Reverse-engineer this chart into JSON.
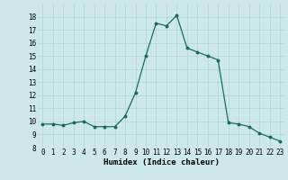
{
  "x": [
    0,
    1,
    2,
    3,
    4,
    5,
    6,
    7,
    8,
    9,
    10,
    11,
    12,
    13,
    14,
    15,
    16,
    17,
    18,
    19,
    20,
    21,
    22,
    23
  ],
  "y": [
    9.8,
    9.8,
    9.7,
    9.9,
    10.0,
    9.6,
    9.6,
    9.6,
    10.4,
    12.2,
    15.0,
    17.5,
    17.3,
    18.1,
    15.6,
    15.3,
    15.0,
    14.7,
    9.9,
    9.8,
    9.6,
    9.1,
    8.8,
    8.5
  ],
  "line_color": "#1a6b5a",
  "marker": "o",
  "marker_size": 1.8,
  "bg_color": "#cde8ea",
  "grid_color": "#b0d4d8",
  "xlabel": "Humidex (Indice chaleur)",
  "ylim": [
    8,
    19
  ],
  "xlim": [
    -0.5,
    23.5
  ],
  "yticks": [
    8,
    9,
    10,
    11,
    12,
    13,
    14,
    15,
    16,
    17,
    18
  ],
  "xticks": [
    0,
    1,
    2,
    3,
    4,
    5,
    6,
    7,
    8,
    9,
    10,
    11,
    12,
    13,
    14,
    15,
    16,
    17,
    18,
    19,
    20,
    21,
    22,
    23
  ],
  "tick_fontsize": 5.5,
  "xlabel_fontsize": 6.5,
  "linewidth": 0.9
}
